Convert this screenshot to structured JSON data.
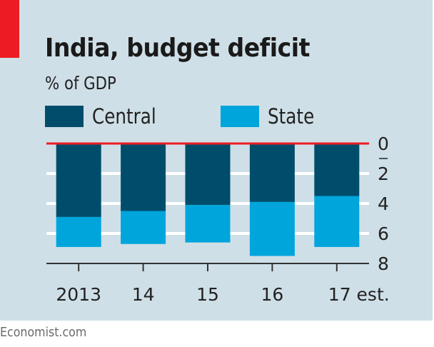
{
  "chart_data": {
    "type": "bar",
    "stacked": true,
    "orientation": "vertical-inverted",
    "title": "India, budget deficit",
    "subtitle": "% of GDP",
    "categories": [
      "2013",
      "14",
      "15",
      "16",
      "17 est."
    ],
    "series": [
      {
        "name": "Central",
        "color": "#004d6b",
        "values": [
          4.9,
          4.5,
          4.1,
          3.9,
          3.5
        ]
      },
      {
        "name": "State",
        "color": "#00a5dc",
        "values": [
          2.0,
          2.2,
          2.5,
          3.6,
          3.4
        ]
      }
    ],
    "ylim": [
      0,
      8
    ],
    "yticks": [
      0,
      2,
      4,
      6,
      8
    ],
    "ytick_labels": [
      "0",
      "2",
      "4",
      "6",
      "8"
    ],
    "y_axis_side": "right",
    "y_inverted": true,
    "zero_line_color": "#ed1c24",
    "grid": true,
    "legend": "top-left",
    "xlabel": "",
    "ylabel": ""
  },
  "source": "Economist.com"
}
